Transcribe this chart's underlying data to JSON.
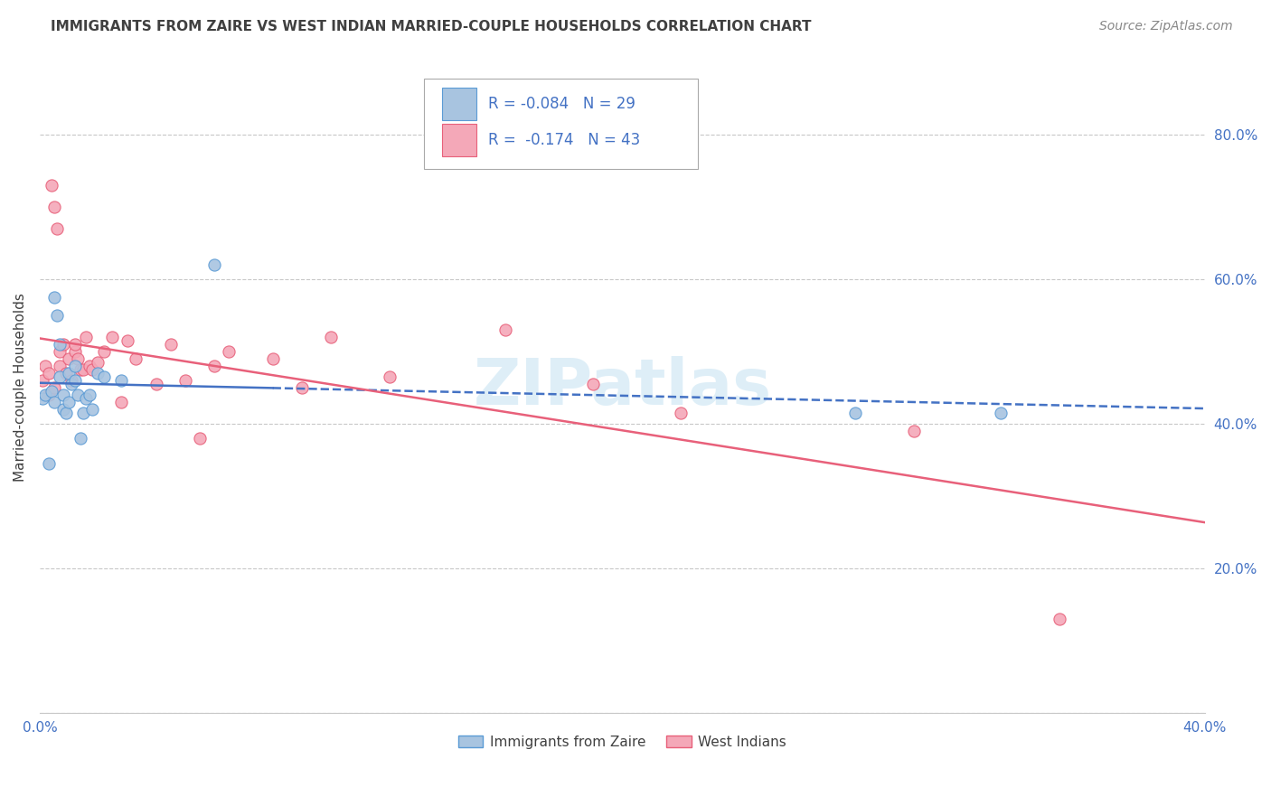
{
  "title": "IMMIGRANTS FROM ZAIRE VS WEST INDIAN MARRIED-COUPLE HOUSEHOLDS CORRELATION CHART",
  "source": "Source: ZipAtlas.com",
  "ylabel_label": "Married-couple Households",
  "x_min": 0.0,
  "x_max": 0.4,
  "y_min": 0.0,
  "y_max": 0.9,
  "y_ticks": [
    0.0,
    0.2,
    0.4,
    0.6,
    0.8
  ],
  "y_tick_labels_right": [
    "",
    "20.0%",
    "40.0%",
    "60.0%",
    "80.0%"
  ],
  "background_color": "#ffffff",
  "grid_color": "#c8c8c8",
  "blue_fill": "#a8c4e0",
  "blue_edge": "#5b9bd5",
  "pink_fill": "#f4a8b8",
  "pink_edge": "#e8607a",
  "blue_line_color": "#4472c4",
  "pink_line_color": "#e8607a",
  "legend_text_color": "#4472c4",
  "axis_label_color": "#4472c4",
  "title_color": "#404040",
  "source_color": "#888888",
  "watermark": "ZIPatlas",
  "watermark_color": "#d0e8f5",
  "legend_r_blue": "-0.084",
  "legend_n_blue": "29",
  "legend_r_pink": "-0.174",
  "legend_n_pink": "43",
  "zaire_x": [
    0.001,
    0.002,
    0.003,
    0.004,
    0.005,
    0.005,
    0.006,
    0.007,
    0.007,
    0.008,
    0.008,
    0.009,
    0.01,
    0.01,
    0.011,
    0.012,
    0.012,
    0.013,
    0.014,
    0.015,
    0.016,
    0.017,
    0.018,
    0.02,
    0.022,
    0.028,
    0.06,
    0.28,
    0.33
  ],
  "zaire_y": [
    0.435,
    0.44,
    0.345,
    0.445,
    0.575,
    0.43,
    0.55,
    0.465,
    0.51,
    0.42,
    0.44,
    0.415,
    0.47,
    0.43,
    0.455,
    0.46,
    0.48,
    0.44,
    0.38,
    0.415,
    0.435,
    0.44,
    0.42,
    0.47,
    0.465,
    0.46,
    0.62,
    0.415,
    0.415
  ],
  "westindian_x": [
    0.001,
    0.002,
    0.003,
    0.003,
    0.004,
    0.005,
    0.005,
    0.006,
    0.007,
    0.007,
    0.008,
    0.009,
    0.01,
    0.011,
    0.012,
    0.012,
    0.013,
    0.014,
    0.015,
    0.016,
    0.017,
    0.018,
    0.02,
    0.022,
    0.025,
    0.028,
    0.03,
    0.033,
    0.04,
    0.045,
    0.05,
    0.055,
    0.06,
    0.065,
    0.08,
    0.09,
    0.1,
    0.12,
    0.16,
    0.19,
    0.22,
    0.3,
    0.35
  ],
  "westindian_y": [
    0.46,
    0.48,
    0.47,
    0.44,
    0.73,
    0.7,
    0.45,
    0.67,
    0.48,
    0.5,
    0.51,
    0.47,
    0.49,
    0.46,
    0.5,
    0.51,
    0.49,
    0.475,
    0.475,
    0.52,
    0.48,
    0.475,
    0.485,
    0.5,
    0.52,
    0.43,
    0.515,
    0.49,
    0.455,
    0.51,
    0.46,
    0.38,
    0.48,
    0.5,
    0.49,
    0.45,
    0.52,
    0.465,
    0.53,
    0.455,
    0.415,
    0.39,
    0.13
  ]
}
